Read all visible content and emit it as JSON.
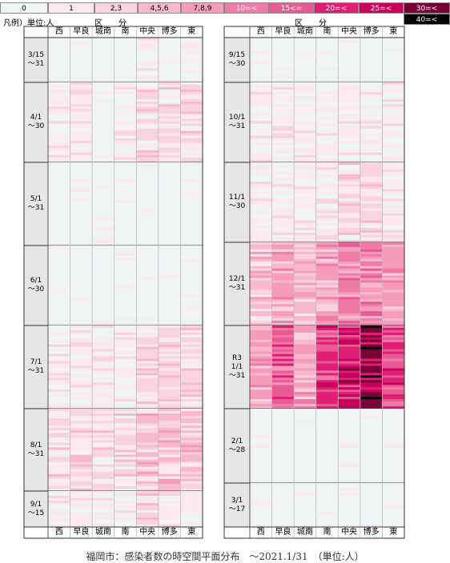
{
  "legend": {
    "unit_label": "凡例）単位:人",
    "items": [
      {
        "label": "0",
        "color": "#eef3f4",
        "text_color": "#000000"
      },
      {
        "label": "1",
        "color": "#fbe9ef",
        "text_color": "#000000"
      },
      {
        "label": "2,3",
        "color": "#fad3e0",
        "text_color": "#000000"
      },
      {
        "label": "4,5,6",
        "color": "#f8b9cf",
        "text_color": "#000000"
      },
      {
        "label": "7,8,9",
        "color": "#f59cbd",
        "text_color": "#000000"
      },
      {
        "label": "10=<",
        "color": "#f07aa8",
        "text_color": "#ffffff"
      },
      {
        "label": "15<=",
        "color": "#e85a93",
        "text_color": "#ffffff"
      },
      {
        "label": "20=<",
        "color": "#df1f75",
        "text_color": "#ffffff"
      },
      {
        "label": "25=<",
        "color": "#c8005e",
        "text_color": "#ffffff"
      },
      {
        "label": "30=<",
        "color": "#7a0038",
        "text_color": "#ffffff"
      },
      {
        "label": "40=<",
        "color": "#000000",
        "text_color": "#ffffff"
      }
    ]
  },
  "header_title": "区　　分",
  "wards": [
    "西",
    "早良",
    "城南",
    "南",
    "中央",
    "博多",
    "東"
  ],
  "left_panel": {
    "months": [
      {
        "label_lines": [
          "3/15",
          "～31"
        ]
      },
      {
        "label_lines": [
          "4/1",
          "～30"
        ]
      },
      {
        "label_lines": [
          "5/1",
          "～31"
        ]
      },
      {
        "label_lines": [
          "6/1",
          "～30"
        ]
      },
      {
        "label_lines": [
          "7/1",
          "～31"
        ]
      },
      {
        "label_lines": [
          "8/1",
          "～31"
        ]
      },
      {
        "label_lines": [
          "9/1",
          "～15"
        ]
      }
    ]
  },
  "right_panel": {
    "months": [
      {
        "label_lines": [
          "9/15",
          "～30"
        ]
      },
      {
        "label_lines": [
          "10/1",
          "～31"
        ]
      },
      {
        "label_lines": [
          "11/1",
          "～30"
        ]
      },
      {
        "label_lines": [
          "12/1",
          "～31"
        ]
      },
      {
        "label_lines": [
          "R3",
          "1/1",
          "～31"
        ]
      },
      {
        "label_lines": [
          "2/1",
          "～28"
        ]
      },
      {
        "label_lines": [
          "3/1",
          "～17"
        ]
      }
    ]
  },
  "chart_data": {
    "type": "heatmap",
    "title": "福岡市：感染者数の時空間平面分布　～2021.1/31　（単位:人）",
    "x": [
      "西",
      "早良",
      "城南",
      "南",
      "中央",
      "博多",
      "東"
    ],
    "unit": "人",
    "bins": [
      "0",
      "1",
      "2,3",
      "4,5,6",
      "7,8,9",
      "10=<",
      "15<=",
      "20=<",
      "25=<",
      "30=<",
      "40=<"
    ],
    "periods": [
      {
        "period": "3/15～31",
        "typical_level": [
          0,
          0,
          0,
          0,
          1,
          0,
          1
        ]
      },
      {
        "period": "4/1～30",
        "typical_level": [
          1,
          1,
          0,
          1,
          2,
          2,
          2
        ]
      },
      {
        "period": "5/1～31",
        "typical_level": [
          0,
          0,
          0,
          0,
          0,
          0,
          0
        ]
      },
      {
        "period": "6/1～30",
        "typical_level": [
          0,
          0,
          0,
          0,
          0,
          0,
          0
        ]
      },
      {
        "period": "7/1～31",
        "typical_level": [
          1,
          1,
          1,
          1,
          2,
          2,
          2
        ]
      },
      {
        "period": "8/1～31",
        "typical_level": [
          2,
          2,
          2,
          2,
          3,
          3,
          3
        ]
      },
      {
        "period": "9/1～15",
        "typical_level": [
          1,
          1,
          1,
          1,
          2,
          1,
          1
        ]
      },
      {
        "period": "9/15～30",
        "typical_level": [
          0,
          0,
          0,
          0,
          0,
          0,
          0
        ]
      },
      {
        "period": "10/1～31",
        "typical_level": [
          1,
          1,
          1,
          1,
          1,
          1,
          1
        ]
      },
      {
        "period": "11/1～30",
        "typical_level": [
          1,
          1,
          1,
          1,
          2,
          2,
          1
        ]
      },
      {
        "period": "12/1～31",
        "typical_level": [
          3,
          4,
          3,
          4,
          5,
          5,
          4
        ]
      },
      {
        "period": "R3 1/1～31",
        "typical_level": [
          4,
          6,
          4,
          7,
          8,
          9,
          7
        ]
      },
      {
        "period": "2/1～28",
        "typical_level": [
          0,
          0,
          0,
          0,
          0,
          0,
          0
        ]
      },
      {
        "period": "3/1～17",
        "typical_level": [
          0,
          0,
          0,
          0,
          0,
          0,
          0
        ]
      }
    ]
  },
  "caption": "福岡市：感染者数の時空間平面分布　～2021.1/31　（単位:人）"
}
